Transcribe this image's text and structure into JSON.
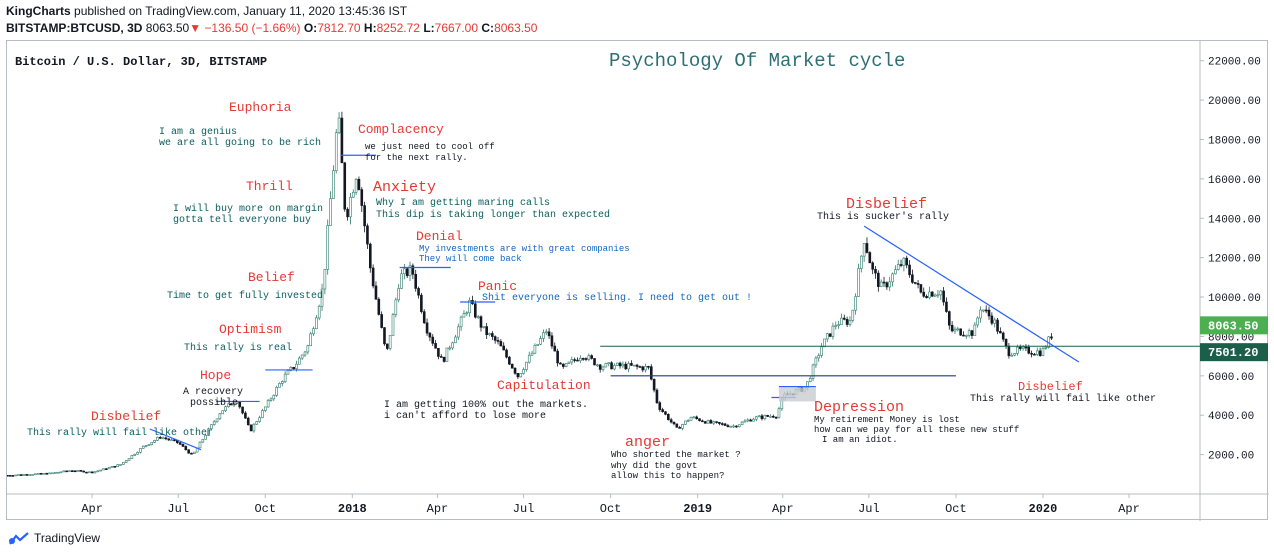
{
  "header": {
    "author": "KingCharts",
    "publish_text": "published on TradingView.com, January 11, 2020 13:45:36 IST",
    "symbol": "BITSTAMP:BTCUSD, 3D",
    "last": "8063.50",
    "change": "−136.50 (−1.66%)",
    "o_label": "O:",
    "o_value": "7812.70",
    "h_label": "H:",
    "h_value": "8252.72",
    "l_label": "L:",
    "l_value": "7667.00",
    "c_label": "C:",
    "c_value": "8063.50"
  },
  "footer": {
    "brand": "TradingView"
  },
  "colors": {
    "up": "#26a69a",
    "down": "#131722",
    "phase_title": "#e53935",
    "note": "#0b5d5e",
    "trend": "#2962ff",
    "hline": "#131722",
    "price_badge": "#4caf50",
    "level_badge": "#1b5e4a",
    "title_color": "#2f6f73"
  },
  "chart_data": {
    "type": "candlestick",
    "title": "Psychology Of Market cycle",
    "series_label": "Bitcoin / U.S. Dollar, 3D, BITSTAMP",
    "ylim": [
      0,
      23000
    ],
    "y_ticks": [
      "22000.00",
      "20000.00",
      "18000.00",
      "16000.00",
      "14000.00",
      "12000.00",
      "10000.00",
      "8000.00",
      "6000.00",
      "4000.00",
      "2000.00"
    ],
    "x_ticks": [
      "Apr",
      "Jul",
      "Oct",
      "2018",
      "Apr",
      "Jul",
      "Oct",
      "2019",
      "Apr",
      "Jul",
      "Oct",
      "2020",
      "Apr"
    ],
    "x_tick_dates": [
      "2017-04-01",
      "2017-07-01",
      "2017-10-01",
      "2018-01-01",
      "2018-04-01",
      "2018-07-01",
      "2018-10-01",
      "2019-01-01",
      "2019-04-01",
      "2019-07-01",
      "2019-10-01",
      "2020-01-01",
      "2020-04-01"
    ],
    "x_range": [
      "2017-01-01",
      "2020-06-15"
    ],
    "price_path": [
      [
        "2017-01-01",
        950
      ],
      [
        "2017-02-15",
        1050
      ],
      [
        "2017-03-10",
        1200
      ],
      [
        "2017-04-01",
        1100
      ],
      [
        "2017-05-01",
        1500
      ],
      [
        "2017-05-25",
        2400
      ],
      [
        "2017-06-12",
        2900
      ],
      [
        "2017-07-01",
        2600
      ],
      [
        "2017-07-16",
        1950
      ],
      [
        "2017-07-25",
        2650
      ],
      [
        "2017-08-15",
        4200
      ],
      [
        "2017-09-01",
        4800
      ],
      [
        "2017-09-15",
        3200
      ],
      [
        "2017-10-01",
        4400
      ],
      [
        "2017-10-20",
        5900
      ],
      [
        "2017-11-01",
        6500
      ],
      [
        "2017-11-15",
        7500
      ],
      [
        "2017-12-01",
        10500
      ],
      [
        "2017-12-10",
        15500
      ],
      [
        "2017-12-17",
        19300
      ],
      [
        "2017-12-25",
        14000
      ],
      [
        "2018-01-06",
        16500
      ],
      [
        "2018-01-20",
        11500
      ],
      [
        "2018-02-06",
        7000
      ],
      [
        "2018-02-20",
        11000
      ],
      [
        "2018-03-05",
        11400
      ],
      [
        "2018-03-20",
        8500
      ],
      [
        "2018-04-06",
        6700
      ],
      [
        "2018-05-05",
        9700
      ],
      [
        "2018-05-20",
        8300
      ],
      [
        "2018-06-05",
        7600
      ],
      [
        "2018-06-25",
        6000
      ],
      [
        "2018-07-25",
        8300
      ],
      [
        "2018-08-10",
        6300
      ],
      [
        "2018-09-01",
        7100
      ],
      [
        "2018-09-20",
        6500
      ],
      [
        "2018-10-15",
        6500
      ],
      [
        "2018-11-10",
        6400
      ],
      [
        "2018-11-20",
        4500
      ],
      [
        "2018-12-10",
        3300
      ],
      [
        "2018-12-25",
        3900
      ],
      [
        "2019-01-15",
        3600
      ],
      [
        "2019-02-08",
        3450
      ],
      [
        "2019-03-01",
        3850
      ],
      [
        "2019-03-25",
        4000
      ],
      [
        "2019-04-03",
        5000
      ],
      [
        "2019-04-25",
        5400
      ],
      [
        "2019-05-12",
        7500
      ],
      [
        "2019-05-28",
        8700
      ],
      [
        "2019-06-12",
        8800
      ],
      [
        "2019-06-26",
        13000
      ],
      [
        "2019-07-05",
        11300
      ],
      [
        "2019-07-15",
        10400
      ],
      [
        "2019-08-06",
        11800
      ],
      [
        "2019-08-25",
        10200
      ],
      [
        "2019-09-15",
        10300
      ],
      [
        "2019-09-25",
        8300
      ],
      [
        "2019-10-20",
        8200
      ],
      [
        "2019-10-27",
        9500
      ],
      [
        "2019-11-10",
        8800
      ],
      [
        "2019-11-25",
        7200
      ],
      [
        "2019-12-10",
        7300
      ],
      [
        "2019-12-31",
        7200
      ],
      [
        "2020-01-10",
        8063.5
      ]
    ],
    "last_price": "8063.50",
    "level_price": "7501.20",
    "annotations": {
      "title": "Psychology Of Market cycle",
      "disbelief1": {
        "phase": "Disbelief",
        "note": "This rally will fail like other"
      },
      "hope": {
        "phase": "Hope",
        "note1": "A recovery",
        "note2": "possible"
      },
      "optimism": {
        "phase": "Optimism",
        "note": "This rally is real"
      },
      "belief": {
        "phase": "Belief",
        "note": "Time to get fully invested"
      },
      "thrill": {
        "phase": "Thrill",
        "note1": "I will buy more on margin",
        "note2": "gotta tell everyone buy"
      },
      "euphoria": {
        "phase": "Euphoria",
        "note1": "I am a genius",
        "note2": "we are all going to be rich"
      },
      "complacency": {
        "phase": "Complacency",
        "note1": "we just need to cool off",
        "note2": "for the next rally."
      },
      "anxiety": {
        "phase": "Anxiety",
        "note1": "Why I am getting maring calls",
        "note2": "This dip is taking longer than expected"
      },
      "denial": {
        "phase": "Denial",
        "note1": "My investments are with great companies",
        "note2": "They will come back"
      },
      "panic": {
        "phase": "Panic",
        "note": "Shit everyone  is selling. I need to get out !"
      },
      "capitulation": {
        "phase": "Capitulation",
        "note1": "I am getting 100% out the markets.",
        "note2": "i can't afford to lose more"
      },
      "anger": {
        "phase": "anger",
        "note1": "Who shorted the market ?",
        "note2": "why did the govt",
        "note3": "allow this to happen?"
      },
      "depression": {
        "phase": "Depression",
        "note1": "My retirement Money is lost",
        "note2": "how can we pay for all these new stuff",
        "note3": "I am an idiot."
      },
      "disbelief2": {
        "phase": "Disbelief",
        "note": "This is sucker's rally"
      },
      "disbelief3": {
        "phase": "Disbelief",
        "note": "This rally will fail like other"
      }
    }
  }
}
